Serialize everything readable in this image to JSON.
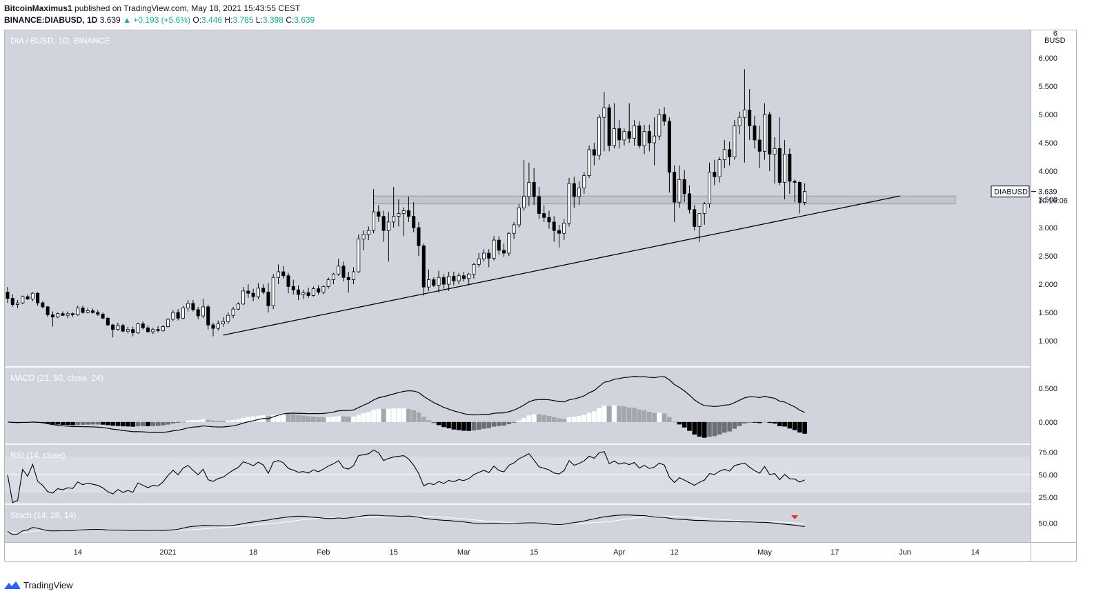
{
  "header": {
    "author": "BitcoinMaximus1",
    "published_text": "published on TradingView.com, May 18, 2021 15:43:55 CEST",
    "symbol": "BINANCE:DIABUSD, 1D",
    "last": "3.639",
    "change": "+0.193 (+5.6%)",
    "o_label": "O:",
    "o": "3.446",
    "h_label": "H:",
    "h": "3.785",
    "l_label": "L:",
    "l": "3.398",
    "c_label": "C:",
    "c": "3.639"
  },
  "chart_data": [
    {
      "type": "candlestick",
      "title": "DIA / BUSD, 1D, BINANCE",
      "currency_label": "BUSD",
      "ylim": [
        0.55,
        6.5
      ],
      "y_ticks": [
        "1.000",
        "1.500",
        "2.000",
        "2.500",
        "3.000",
        "3.500",
        "4.000",
        "4.500",
        "5.000",
        "5.500",
        "6.000"
      ],
      "x_ticks": [
        "14",
        "2021",
        "18",
        "Feb",
        "15",
        "Mar",
        "15",
        "Apr",
        "12",
        "May",
        "17",
        "Jun",
        "14"
      ],
      "x_tick_days": [
        14,
        32,
        49,
        63,
        77,
        91,
        105,
        122,
        133,
        151,
        165,
        179,
        193
      ],
      "date_range": [
        "2020-12-01",
        "2021-05-18"
      ],
      "candles": [
        [
          1.86,
          1.95,
          1.67,
          1.75
        ],
        [
          1.75,
          1.82,
          1.6,
          1.64
        ],
        [
          1.64,
          1.72,
          1.58,
          1.67
        ],
        [
          1.67,
          1.8,
          1.65,
          1.78
        ],
        [
          1.78,
          1.82,
          1.72,
          1.74
        ],
        [
          1.74,
          1.86,
          1.7,
          1.84
        ],
        [
          1.84,
          1.86,
          1.62,
          1.67
        ],
        [
          1.67,
          1.7,
          1.57,
          1.6
        ],
        [
          1.6,
          1.62,
          1.42,
          1.46
        ],
        [
          1.46,
          1.52,
          1.25,
          1.42
        ],
        [
          1.42,
          1.5,
          1.4,
          1.48
        ],
        [
          1.48,
          1.52,
          1.44,
          1.45
        ],
        [
          1.45,
          1.52,
          1.4,
          1.48
        ],
        [
          1.48,
          1.5,
          1.42,
          1.46
        ],
        [
          1.46,
          1.62,
          1.44,
          1.58
        ],
        [
          1.58,
          1.62,
          1.48,
          1.5
        ],
        [
          1.5,
          1.58,
          1.48,
          1.53
        ],
        [
          1.53,
          1.57,
          1.48,
          1.5
        ],
        [
          1.5,
          1.54,
          1.44,
          1.47
        ],
        [
          1.47,
          1.5,
          1.38,
          1.4
        ],
        [
          1.4,
          1.42,
          1.26,
          1.28
        ],
        [
          1.28,
          1.3,
          1.06,
          1.2
        ],
        [
          1.2,
          1.32,
          1.18,
          1.27
        ],
        [
          1.27,
          1.3,
          1.15,
          1.17
        ],
        [
          1.17,
          1.25,
          1.13,
          1.2
        ],
        [
          1.2,
          1.25,
          1.08,
          1.14
        ],
        [
          1.14,
          1.32,
          1.12,
          1.3
        ],
        [
          1.3,
          1.34,
          1.2,
          1.23
        ],
        [
          1.23,
          1.28,
          1.14,
          1.16
        ],
        [
          1.16,
          1.23,
          1.12,
          1.2
        ],
        [
          1.2,
          1.26,
          1.15,
          1.18
        ],
        [
          1.18,
          1.28,
          1.16,
          1.25
        ],
        [
          1.25,
          1.4,
          1.23,
          1.38
        ],
        [
          1.38,
          1.54,
          1.35,
          1.5
        ],
        [
          1.5,
          1.56,
          1.36,
          1.4
        ],
        [
          1.4,
          1.62,
          1.38,
          1.58
        ],
        [
          1.58,
          1.72,
          1.52,
          1.66
        ],
        [
          1.66,
          1.72,
          1.52,
          1.55
        ],
        [
          1.55,
          1.6,
          1.38,
          1.44
        ],
        [
          1.44,
          1.74,
          1.4,
          1.6
        ],
        [
          1.6,
          1.64,
          1.2,
          1.28
        ],
        [
          1.28,
          1.32,
          1.08,
          1.22
        ],
        [
          1.22,
          1.36,
          1.18,
          1.3
        ],
        [
          1.3,
          1.42,
          1.25,
          1.34
        ],
        [
          1.34,
          1.5,
          1.3,
          1.45
        ],
        [
          1.45,
          1.6,
          1.4,
          1.56
        ],
        [
          1.56,
          1.68,
          1.54,
          1.65
        ],
        [
          1.65,
          1.95,
          1.63,
          1.88
        ],
        [
          1.88,
          2.0,
          1.76,
          1.84
        ],
        [
          1.84,
          1.92,
          1.7,
          1.78
        ],
        [
          1.78,
          2.02,
          1.74,
          1.93
        ],
        [
          1.93,
          2.0,
          1.82,
          1.86
        ],
        [
          1.86,
          2.02,
          1.5,
          1.62
        ],
        [
          1.62,
          2.18,
          1.56,
          2.12
        ],
        [
          2.12,
          2.35,
          2.0,
          2.22
        ],
        [
          2.22,
          2.32,
          2.1,
          2.15
        ],
        [
          2.15,
          2.2,
          1.84,
          1.96
        ],
        [
          1.96,
          2.08,
          1.82,
          1.9
        ],
        [
          1.9,
          1.98,
          1.72,
          1.82
        ],
        [
          1.82,
          1.9,
          1.74,
          1.85
        ],
        [
          1.85,
          1.94,
          1.76,
          1.8
        ],
        [
          1.8,
          1.96,
          1.78,
          1.92
        ],
        [
          1.92,
          1.98,
          1.82,
          1.86
        ],
        [
          1.86,
          1.98,
          1.82,
          1.96
        ],
        [
          1.96,
          2.12,
          1.92,
          2.08
        ],
        [
          2.08,
          2.2,
          2.0,
          2.18
        ],
        [
          2.18,
          2.45,
          2.15,
          2.32
        ],
        [
          2.32,
          2.4,
          2.05,
          2.12
        ],
        [
          2.12,
          2.22,
          1.85,
          2.08
        ],
        [
          2.08,
          2.3,
          2.0,
          2.22
        ],
        [
          2.22,
          2.88,
          2.2,
          2.8
        ],
        [
          2.8,
          2.95,
          2.6,
          2.88
        ],
        [
          2.88,
          3.02,
          2.78,
          2.95
        ],
        [
          2.95,
          3.68,
          2.9,
          3.28
        ],
        [
          3.28,
          3.4,
          3.1,
          3.2
        ],
        [
          3.2,
          3.3,
          2.75,
          2.95
        ],
        [
          2.95,
          3.28,
          2.4,
          3.1
        ],
        [
          3.1,
          3.72,
          3.0,
          3.2
        ],
        [
          3.2,
          3.5,
          3.02,
          3.25
        ],
        [
          3.25,
          3.36,
          2.85,
          3.3
        ],
        [
          3.3,
          3.55,
          3.1,
          3.2
        ],
        [
          3.2,
          3.45,
          2.92,
          3.0
        ],
        [
          3.0,
          3.1,
          2.5,
          2.68
        ],
        [
          2.68,
          2.72,
          1.8,
          1.95
        ],
        [
          1.95,
          2.26,
          1.88,
          2.08
        ],
        [
          2.08,
          2.12,
          1.95,
          1.98
        ],
        [
          1.98,
          2.24,
          1.85,
          2.12
        ],
        [
          2.12,
          2.18,
          1.92,
          2.0
        ],
        [
          2.0,
          2.22,
          1.88,
          2.14
        ],
        [
          2.14,
          2.22,
          1.98,
          2.06
        ],
        [
          2.06,
          2.2,
          2.0,
          2.15
        ],
        [
          2.15,
          2.22,
          2.05,
          2.1
        ],
        [
          2.1,
          2.2,
          2.0,
          2.18
        ],
        [
          2.18,
          2.38,
          2.1,
          2.35
        ],
        [
          2.35,
          2.55,
          2.3,
          2.45
        ],
        [
          2.45,
          2.62,
          2.4,
          2.55
        ],
        [
          2.55,
          2.62,
          2.3,
          2.46
        ],
        [
          2.46,
          2.85,
          2.42,
          2.78
        ],
        [
          2.78,
          2.85,
          2.52,
          2.6
        ],
        [
          2.6,
          2.72,
          2.48,
          2.55
        ],
        [
          2.55,
          2.92,
          2.5,
          2.9
        ],
        [
          2.9,
          3.1,
          2.8,
          3.05
        ],
        [
          3.05,
          3.42,
          3.0,
          3.35
        ],
        [
          3.35,
          4.2,
          3.3,
          3.55
        ],
        [
          3.55,
          4.15,
          3.38,
          3.8
        ],
        [
          3.8,
          4.05,
          3.4,
          3.55
        ],
        [
          3.55,
          3.72,
          3.15,
          3.25
        ],
        [
          3.25,
          3.4,
          3.1,
          3.18
        ],
        [
          3.18,
          3.3,
          2.98,
          3.1
        ],
        [
          3.1,
          3.2,
          2.75,
          2.95
        ],
        [
          2.95,
          3.05,
          2.65,
          2.9
        ],
        [
          2.9,
          3.15,
          2.78,
          3.08
        ],
        [
          3.08,
          3.88,
          3.02,
          3.78
        ],
        [
          3.78,
          3.9,
          3.35,
          3.55
        ],
        [
          3.55,
          3.82,
          3.4,
          3.7
        ],
        [
          3.7,
          3.98,
          3.6,
          3.92
        ],
        [
          3.92,
          4.45,
          3.88,
          4.38
        ],
        [
          4.38,
          4.5,
          4.1,
          4.28
        ],
        [
          4.28,
          5.0,
          4.2,
          4.95
        ],
        [
          4.95,
          5.4,
          4.35,
          5.12
        ],
        [
          5.12,
          5.18,
          4.35,
          4.45
        ],
        [
          4.45,
          5.2,
          4.4,
          4.75
        ],
        [
          4.75,
          4.9,
          4.4,
          4.55
        ],
        [
          4.55,
          4.75,
          4.45,
          4.7
        ],
        [
          4.7,
          5.2,
          4.5,
          4.58
        ],
        [
          4.58,
          4.9,
          4.45,
          4.8
        ],
        [
          4.8,
          4.88,
          4.4,
          4.45
        ],
        [
          4.45,
          4.82,
          4.3,
          4.7
        ],
        [
          4.7,
          4.82,
          4.35,
          4.5
        ],
        [
          4.5,
          4.95,
          4.1,
          4.62
        ],
        [
          4.62,
          5.1,
          4.55,
          5.0
        ],
        [
          5.0,
          5.13,
          4.8,
          4.88
        ],
        [
          4.88,
          4.95,
          3.62,
          3.98
        ],
        [
          3.98,
          4.1,
          3.1,
          3.45
        ],
        [
          3.45,
          4.1,
          3.35,
          3.85
        ],
        [
          3.85,
          4.02,
          3.45,
          3.6
        ],
        [
          3.6,
          3.75,
          3.25,
          3.32
        ],
        [
          3.32,
          3.4,
          2.95,
          3.02
        ],
        [
          3.02,
          3.25,
          2.75,
          3.25
        ],
        [
          3.25,
          3.45,
          3.05,
          3.42
        ],
        [
          3.42,
          4.15,
          3.35,
          3.98
        ],
        [
          3.98,
          4.2,
          3.75,
          3.9
        ],
        [
          3.9,
          4.25,
          3.8,
          4.2
        ],
        [
          4.2,
          4.55,
          4.05,
          4.38
        ],
        [
          4.38,
          4.52,
          4.1,
          4.25
        ],
        [
          4.25,
          4.9,
          4.2,
          4.8
        ],
        [
          4.8,
          5.05,
          4.65,
          4.95
        ],
        [
          4.95,
          5.8,
          4.15,
          5.08
        ],
        [
          5.08,
          5.45,
          4.55,
          4.8
        ],
        [
          4.8,
          4.98,
          4.4,
          4.55
        ],
        [
          4.55,
          4.8,
          4.05,
          4.35
        ],
        [
          4.35,
          5.2,
          4.2,
          5.0
        ],
        [
          5.0,
          5.05,
          4.0,
          4.3
        ],
        [
          4.3,
          4.6,
          3.78,
          4.4
        ],
        [
          4.4,
          4.95,
          3.75,
          3.8
        ],
        [
          3.8,
          4.55,
          3.5,
          4.3
        ],
        [
          4.3,
          4.4,
          3.6,
          3.82
        ],
        [
          3.82,
          3.85,
          3.45,
          3.8
        ],
        [
          3.8,
          3.82,
          3.25,
          3.446
        ],
        [
          3.446,
          3.785,
          3.398,
          3.639
        ]
      ],
      "support_zone": [
        3.42,
        3.56
      ],
      "trendline": {
        "from": [
          43,
          1.1
        ],
        "to": [
          178,
          3.56
        ]
      },
      "price_label": {
        "symbol": "DIABUSD",
        "price": "3.639",
        "countdown": "10:16:06"
      },
      "grid": false
    },
    {
      "type": "line+histogram",
      "title": "MACD (21, 50, close, 24)",
      "ylim": [
        -0.32,
        0.82
      ],
      "y_ticks": [
        "0.500",
        "0.000"
      ]
    },
    {
      "type": "line",
      "title": "RSI (14, close)",
      "ylim": [
        18,
        84
      ],
      "y_ticks": [
        "75.00",
        "50.00",
        "25.00"
      ],
      "bands": [
        30,
        70
      ]
    },
    {
      "type": "line",
      "title": "Stoch (14, 28, 14)",
      "ylim": [
        0,
        100
      ],
      "y_ticks": [
        "50.00"
      ]
    }
  ],
  "footer": {
    "logo_text": "TradingView"
  },
  "colors": {
    "pane_bg": "#d1d4dc",
    "rsi_band": "#dadde5",
    "axis_bg": "#ffffff",
    "text": "#131722",
    "muted": "#ffffff",
    "green": "#26a69a",
    "marker_red": "#e5332b"
  }
}
